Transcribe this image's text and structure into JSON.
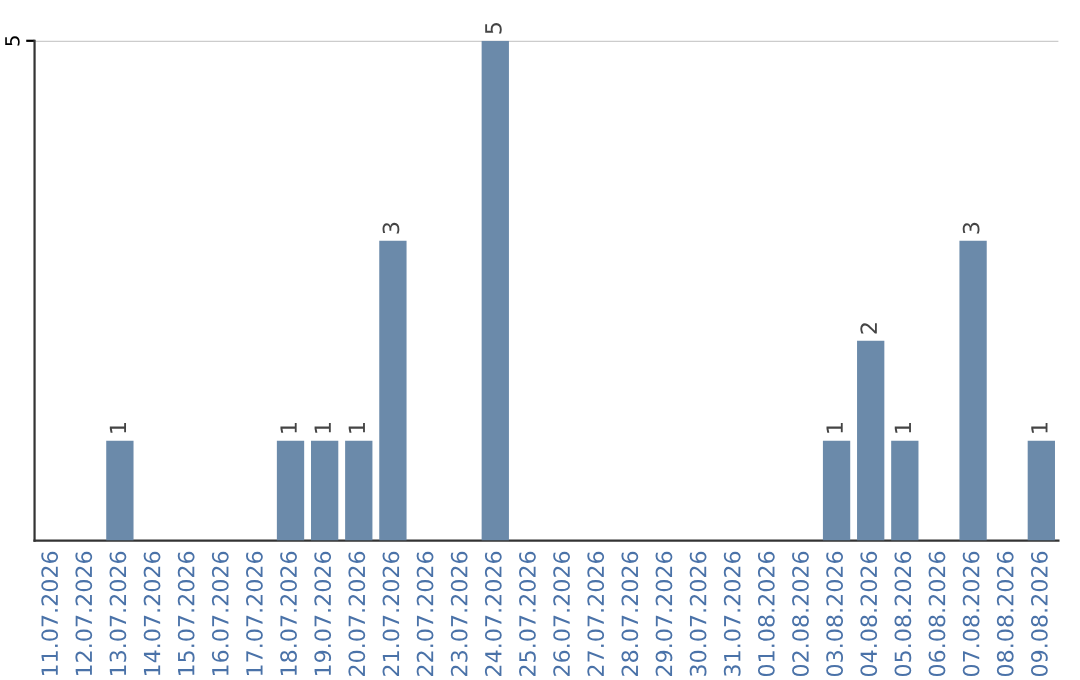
{
  "chart_data": {
    "type": "bar",
    "categories": [
      "11.07.2026",
      "12.07.2026",
      "13.07.2026",
      "14.07.2026",
      "15.07.2026",
      "16.07.2026",
      "17.07.2026",
      "18.07.2026",
      "19.07.2026",
      "20.07.2026",
      "21.07.2026",
      "22.07.2026",
      "23.07.2026",
      "24.07.2026",
      "25.07.2026",
      "26.07.2026",
      "27.07.2026",
      "28.07.2026",
      "29.07.2026",
      "30.07.2026",
      "31.07.2026",
      "01.08.2026",
      "02.08.2026",
      "03.08.2026",
      "04.08.2026",
      "05.08.2026",
      "06.08.2026",
      "07.08.2026",
      "08.08.2026",
      "09.08.2026"
    ],
    "values": [
      0,
      0,
      1,
      0,
      0,
      0,
      0,
      1,
      1,
      1,
      3,
      0,
      0,
      5,
      0,
      0,
      0,
      0,
      0,
      0,
      0,
      0,
      0,
      1,
      2,
      1,
      0,
      3,
      0,
      1
    ],
    "color": "#6b8aaa",
    "value_labels": [
      null,
      null,
      "1",
      null,
      null,
      null,
      null,
      "1",
      "1",
      "1",
      "3",
      null,
      null,
      "5",
      null,
      null,
      null,
      null,
      null,
      null,
      null,
      null,
      null,
      "1",
      "2",
      "1",
      null,
      "3",
      null,
      "1"
    ],
    "ylim": [
      0,
      5
    ],
    "yticks": [
      5
    ],
    "ref_lines": [
      {
        "axis": "y",
        "value": 5,
        "color": "#cccccc"
      }
    ]
  }
}
